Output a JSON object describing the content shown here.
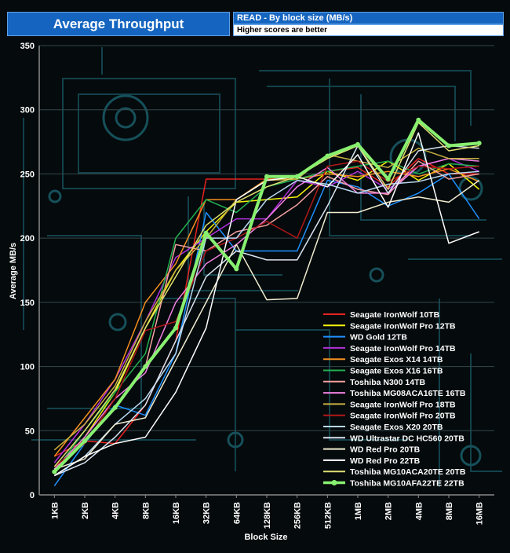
{
  "chart_data": {
    "type": "line",
    "title": "Average Throughput",
    "subtitle": "READ - By block size (MB/s)",
    "note": "Higher scores are better",
    "xlabel": "Block Size",
    "ylabel": "Average MB/s",
    "ylim": [
      0,
      350
    ],
    "yticks": [
      0,
      50,
      100,
      150,
      200,
      250,
      300,
      350
    ],
    "categories": [
      "1KB",
      "2KB",
      "4KB",
      "8KB",
      "16KB",
      "32KB",
      "64KB",
      "128KB",
      "256KB",
      "512KB",
      "1MB",
      "2MB",
      "4MB",
      "8MB",
      "16MB"
    ],
    "legend_position": "right",
    "series": [
      {
        "name": "Seagate IronWolf 10TB",
        "color": "#e8231f",
        "width": 1.5,
        "values": [
          30,
          42,
          40,
          70,
          120,
          246,
          246,
          246,
          246,
          252,
          255,
          240,
          262,
          250,
          250
        ]
      },
      {
        "name": "Seagate IronWolf Pro 12TB",
        "color": "#f4f40a",
        "width": 1.5,
        "values": [
          20,
          45,
          80,
          130,
          175,
          205,
          228,
          230,
          232,
          252,
          245,
          260,
          245,
          258,
          238
        ]
      },
      {
        "name": "WD Gold 12TB",
        "color": "#1e90ff",
        "width": 1.5,
        "values": [
          7,
          40,
          70,
          62,
          110,
          220,
          190,
          190,
          190,
          245,
          240,
          225,
          235,
          250,
          215
        ]
      },
      {
        "name": "Seagate IronWolf Pro 14TB",
        "color": "#b030d8",
        "width": 1.5,
        "values": [
          25,
          55,
          90,
          135,
          185,
          200,
          215,
          215,
          245,
          240,
          252,
          238,
          256,
          262,
          252
        ]
      },
      {
        "name": "Seagate Exos X14 14TB",
        "color": "#f49020",
        "width": 1.5,
        "values": [
          30,
          60,
          90,
          150,
          180,
          230,
          230,
          246,
          246,
          250,
          248,
          252,
          248,
          254,
          244
        ]
      },
      {
        "name": "Seagate Exos X16 16TB",
        "color": "#22b050",
        "width": 1.5,
        "values": [
          18,
          50,
          80,
          110,
          200,
          230,
          220,
          240,
          246,
          252,
          256,
          260,
          250,
          258,
          256
        ]
      },
      {
        "name": "Toshiba N300 14TB",
        "color": "#f4a0a0",
        "width": 1.5,
        "values": [
          18,
          42,
          68,
          100,
          195,
          190,
          205,
          210,
          226,
          248,
          238,
          234,
          260,
          246,
          250
        ]
      },
      {
        "name": "Toshiba MG08ACA16TE 16TB",
        "color": "#f080e0",
        "width": 1.5,
        "values": [
          20,
          45,
          75,
          95,
          150,
          180,
          195,
          215,
          240,
          255,
          235,
          235,
          256,
          262,
          260
        ]
      },
      {
        "name": "Seagate IronWolf Pro 18TB",
        "color": "#c8b040",
        "width": 1.5,
        "values": [
          35,
          55,
          85,
          135,
          175,
          200,
          230,
          245,
          246,
          265,
          260,
          255,
          270,
          262,
          262
        ]
      },
      {
        "name": "Seagate IronWolf Pro 20TB",
        "color": "#b01818",
        "width": 1.5,
        "values": [
          22,
          40,
          75,
          128,
          135,
          190,
          200,
          213,
          200,
          256,
          260,
          244,
          256,
          254,
          256
        ]
      },
      {
        "name": "Seagate Exos X20 20TB",
        "color": "#b8d8f0",
        "width": 1.5,
        "values": [
          15,
          30,
          55,
          75,
          110,
          200,
          200,
          230,
          245,
          242,
          235,
          242,
          244,
          250,
          252
        ]
      },
      {
        "name": "WD Ultrastar DC HC560 20TB",
        "color": "#d8e4f0",
        "width": 1.5,
        "values": [
          15,
          25,
          45,
          70,
          120,
          170,
          190,
          183,
          183,
          225,
          272,
          235,
          268,
          272,
          270
        ]
      },
      {
        "name": "WD Red Pro 20TB",
        "color": "#f0ecd0",
        "width": 1.5,
        "values": [
          20,
          28,
          55,
          60,
          105,
          150,
          195,
          152,
          153,
          220,
          220,
          228,
          232,
          228,
          245
        ]
      },
      {
        "name": "WD Red Pro 22TB",
        "color": "#ffffff",
        "width": 1.5,
        "values": [
          15,
          30,
          40,
          45,
          80,
          130,
          230,
          245,
          248,
          240,
          265,
          224,
          282,
          196,
          205
        ]
      },
      {
        "name": "Toshiba MG10ACA20TE 20TB",
        "color": "#e0e070",
        "width": 1.5,
        "values": [
          22,
          50,
          82,
          130,
          170,
          210,
          228,
          240,
          248,
          262,
          272,
          238,
          290,
          268,
          272
        ]
      },
      {
        "name": "Toshiba MG10AFA22TE 22TB",
        "color": "#88f070",
        "width": 4,
        "marker": true,
        "values": [
          18,
          42,
          68,
          100,
          130,
          204,
          176,
          248,
          248,
          264,
          273,
          246,
          292,
          272,
          274
        ]
      }
    ]
  }
}
